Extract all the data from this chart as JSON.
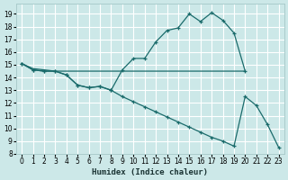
{
  "xlabel": "Humidex (Indice chaleur)",
  "bg_color": "#cce8e8",
  "grid_color": "#ffffff",
  "line_color": "#1a6b6b",
  "ylim": [
    8,
    19.8
  ],
  "xlim": [
    -0.5,
    23.5
  ],
  "yticks": [
    8,
    9,
    10,
    11,
    12,
    13,
    14,
    15,
    16,
    17,
    18,
    19
  ],
  "xticks": [
    0,
    1,
    2,
    3,
    4,
    5,
    6,
    7,
    8,
    9,
    10,
    11,
    12,
    13,
    14,
    15,
    16,
    17,
    18,
    19,
    20,
    21,
    22,
    23
  ],
  "series1_x": [
    0,
    1,
    2,
    3,
    4,
    5,
    6,
    7,
    8,
    9,
    10,
    11,
    12,
    13,
    14,
    15,
    16,
    17,
    18,
    19,
    20
  ],
  "series1_y": [
    15.1,
    14.6,
    14.5,
    14.5,
    14.2,
    13.4,
    13.2,
    13.3,
    13.0,
    14.6,
    15.5,
    15.5,
    16.8,
    17.7,
    17.9,
    19.0,
    18.4,
    19.1,
    18.5,
    17.5,
    14.5
  ],
  "series2_x": [
    0,
    1,
    2,
    3,
    4,
    5,
    6,
    7,
    8,
    9,
    10,
    11,
    12,
    13,
    14,
    15,
    16,
    17,
    18,
    19,
    20
  ],
  "series2_y": [
    15.1,
    14.7,
    14.6,
    14.5,
    14.5,
    14.5,
    14.5,
    14.5,
    14.5,
    14.5,
    14.5,
    14.5,
    14.5,
    14.5,
    14.5,
    14.5,
    14.5,
    14.5,
    14.5,
    14.5,
    14.5
  ],
  "series3_x": [
    0,
    1,
    2,
    3,
    4,
    5,
    6,
    7,
    8,
    9,
    10,
    11,
    12,
    13,
    14,
    15,
    16,
    17,
    18,
    19,
    20,
    21,
    22,
    23
  ],
  "series3_y": [
    15.1,
    14.6,
    14.5,
    14.5,
    14.2,
    13.4,
    13.2,
    13.3,
    13.0,
    12.5,
    12.1,
    11.7,
    11.3,
    10.9,
    10.5,
    10.1,
    9.7,
    9.3,
    9.0,
    8.6,
    12.5,
    11.8,
    10.3,
    8.5
  ]
}
